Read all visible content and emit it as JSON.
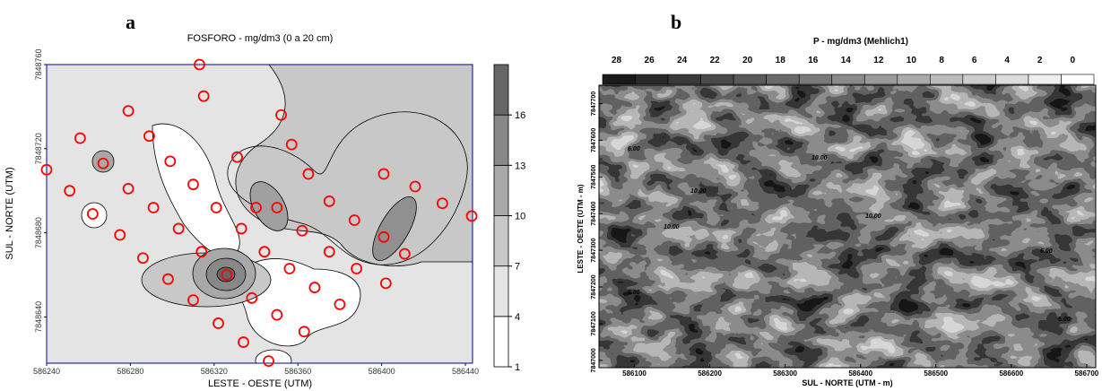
{
  "chart_data": [
    {
      "type": "contour",
      "panel": "a",
      "title": "FOSFORO - mg/dm3 (0 a 20 cm)",
      "x_label": "LESTE - OESTE (UTM)",
      "y_label": "SUL - NORTE (UTM)",
      "xlim": [
        586240,
        586443.4
      ],
      "ylim": [
        7848618,
        7848760
      ],
      "xticks": [
        586240,
        586280,
        586320,
        586360,
        586400,
        586440
      ],
      "yticks": [
        7848640,
        7848680,
        7848720,
        7848760
      ],
      "point_color": "#ff0000",
      "points": {
        "x": [
          586313,
          586315,
          586279,
          586352,
          586256,
          586289,
          586357,
          586267,
          586331,
          586299,
          586240,
          586365,
          586401,
          586340,
          586310,
          586279,
          586251,
          586416,
          586350,
          586321,
          586291,
          586375,
          586429,
          586262,
          586443,
          586387,
          586303,
          586333,
          586362,
          586275,
          586401,
          586314,
          586344,
          586375,
          586286,
          586411,
          586356,
          586388,
          586326,
          586298,
          586402,
          586368,
          586338,
          586310,
          586380,
          586350,
          586322,
          586363,
          586334,
          586346
        ],
        "y": [
          7848760,
          7848745,
          7848738,
          7848736,
          7848725,
          7848726,
          7848722,
          7848713,
          7848716,
          7848714,
          7848710,
          7848708,
          7848708,
          7848692,
          7848703,
          7848701,
          7848700,
          7848702,
          7848692,
          7848692,
          7848692,
          7848695,
          7848694,
          7848689,
          7848688,
          7848686,
          7848682,
          7848682,
          7848681,
          7848679,
          7848678,
          7848671,
          7848671,
          7848671,
          7848668,
          7848670,
          7848663,
          7848663,
          7848660,
          7848658,
          7848656,
          7848654,
          7848649,
          7848648,
          7848646,
          7848641,
          7848637,
          7848633,
          7848628,
          7848619
        ]
      },
      "clim": [
        1,
        19
      ],
      "colorbar_ticks": [
        1,
        4,
        7,
        10,
        13,
        16
      ],
      "colorbar_colors": [
        "#ffffff",
        "#e4e4e4",
        "#c8c8c8",
        "#a8a8a8",
        "#888888",
        "#666666"
      ]
    },
    {
      "type": "contour-raster",
      "panel": "b",
      "title": "P - mg/dm3    (Mehlich1)",
      "x_label": "SUL - NORTE (UTM - m)",
      "y_label": "LESTE - OESTE (UTM - m)",
      "xlim": [
        586053,
        586712
      ],
      "ylim": [
        7846980,
        7847750
      ],
      "xticks": [
        586100,
        586200,
        586300,
        586400,
        586500,
        586600,
        586700
      ],
      "yticks": [
        7847000,
        7847100,
        7847200,
        7847300,
        7847400,
        7847500,
        7847600,
        7847700
      ],
      "legend_values": [
        28,
        26,
        24,
        22,
        20,
        18,
        16,
        14,
        12,
        10,
        8,
        6,
        4,
        2,
        0
      ],
      "legend_colors": [
        "#1a1a1a",
        "#2a2a2a",
        "#3a3a3a",
        "#4a4a4a",
        "#5a5a5a",
        "#6a6a6a",
        "#7a7a7a",
        "#8a8a8a",
        "#9a9a9a",
        "#aaaaaa",
        "#bbbbbb",
        "#cccccc",
        "#dddddd",
        "#eeeeee",
        "#ffffff"
      ],
      "contour_labels": [
        "6.00",
        "10.00",
        "10.00",
        "6.00",
        "10.00",
        "10.00",
        "6.00",
        "6.00"
      ]
    }
  ]
}
